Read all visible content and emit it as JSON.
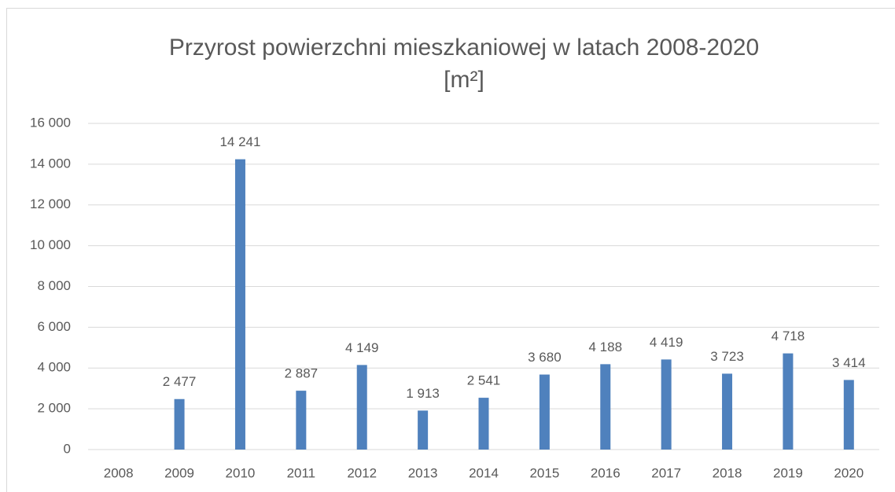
{
  "chart_data": {
    "type": "bar",
    "title": "Przyrost powierzchni mieszkaniowej w latach 2008-2020",
    "subtitle": "[m²]",
    "categories": [
      "2008",
      "2009",
      "2010",
      "2011",
      "2012",
      "2013",
      "2014",
      "2015",
      "2016",
      "2017",
      "2018",
      "2019",
      "2020"
    ],
    "values": [
      null,
      2477,
      14241,
      2887,
      4149,
      1913,
      2541,
      3680,
      4188,
      4419,
      3723,
      4718,
      3414
    ],
    "value_labels": [
      null,
      "2 477",
      "14 241",
      "2 887",
      "4 149",
      "1 913",
      "2 541",
      "3 680",
      "4 188",
      "4 419",
      "3 723",
      "4 718",
      "3 414"
    ],
    "color": "#4f81bd",
    "ylim": [
      0,
      16000
    ],
    "yticks": [
      0,
      {
        "value": 2000,
        "label": "2 000"
      },
      {
        "value": 4000,
        "label": "4 000"
      },
      {
        "value": 6000,
        "label": "6 000"
      },
      {
        "value": 8000,
        "label": "8 000"
      },
      {
        "value": 10000,
        "label": "10 000"
      },
      {
        "value": 12000,
        "label": "12 000"
      },
      {
        "value": 14000,
        "label": "14 000"
      },
      {
        "value": 16000,
        "label": "16 000"
      }
    ],
    "grid": true
  }
}
